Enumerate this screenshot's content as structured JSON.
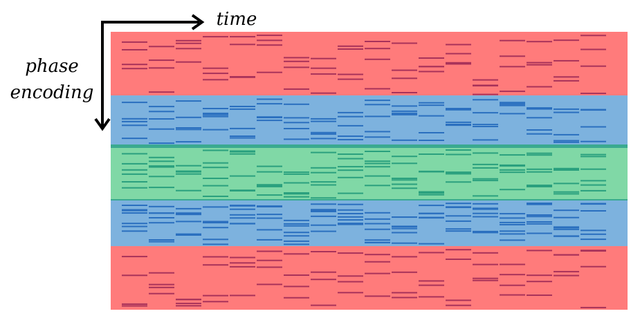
{
  "axes": {
    "horizontal": "time",
    "vertical": [
      "phase",
      "encoding"
    ]
  }
}
